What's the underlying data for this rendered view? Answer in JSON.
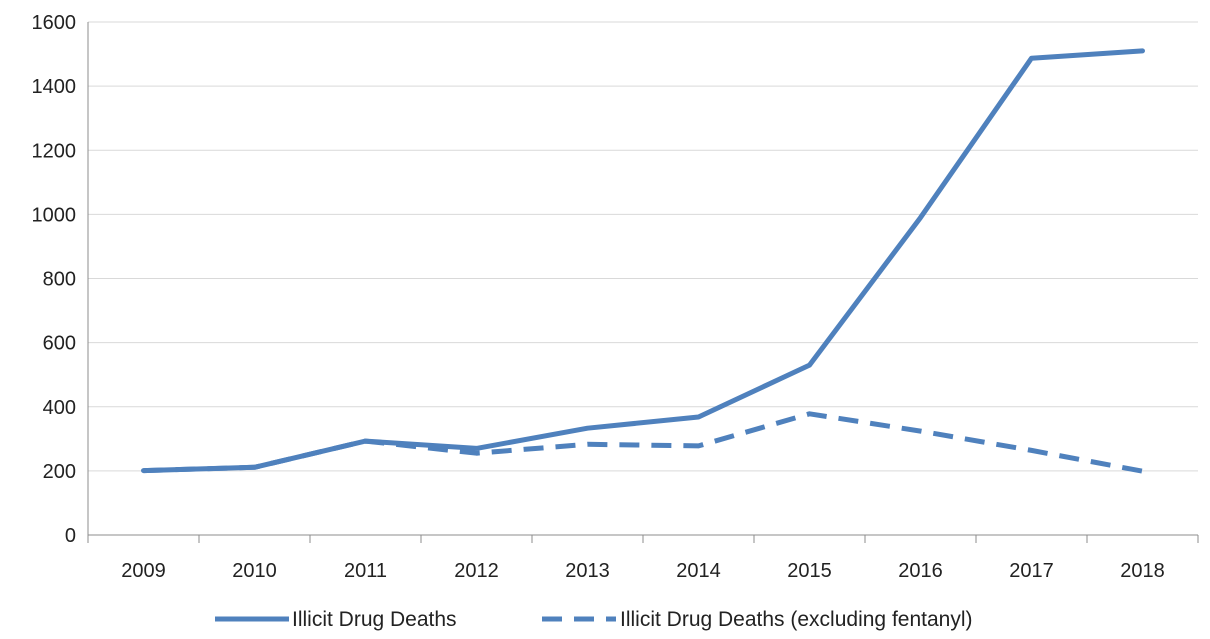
{
  "chart_data": {
    "type": "line",
    "categories": [
      "2009",
      "2010",
      "2011",
      "2012",
      "2013",
      "2014",
      "2015",
      "2016",
      "2017",
      "2018"
    ],
    "series": [
      {
        "name": "Illicit Drug Deaths",
        "values": [
          201,
          211,
          293,
          270,
          333,
          368,
          530,
          990,
          1487,
          1510
        ],
        "color": "#4F81BD",
        "style": "solid"
      },
      {
        "name": "Illicit Drug Deaths (excluding fentanyl)",
        "values": [
          201,
          211,
          293,
          255,
          283,
          278,
          378,
          324,
          264,
          199
        ],
        "color": "#4F81BD",
        "style": "dashed"
      }
    ],
    "title": "",
    "xlabel": "",
    "ylabel": "",
    "ylim": [
      0,
      1600
    ],
    "yticks": [
      "0",
      "200",
      "400",
      "600",
      "800",
      "1000",
      "1200",
      "1400",
      "1600"
    ],
    "grid": "horizontal",
    "legend": "bottom-center"
  }
}
